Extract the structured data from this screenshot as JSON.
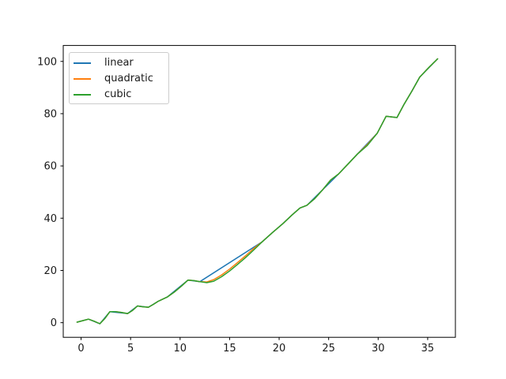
{
  "figure": {
    "background": "#ffffff",
    "axes_color": "#000000",
    "tick_label_color": "#1a1a1a"
  },
  "chart_data": {
    "type": "line",
    "title": "",
    "xlabel": "",
    "ylabel": "",
    "xlim": [
      -1.8,
      37.8
    ],
    "ylim": [
      -5.6,
      106.1
    ],
    "x_ticks": [
      0,
      5,
      10,
      15,
      20,
      25,
      30,
      35
    ],
    "y_ticks": [
      0,
      20,
      40,
      60,
      80,
      100
    ],
    "grid": false,
    "legend": {
      "position": "upper left",
      "border_color": "#cccccc",
      "background": "#ffffff"
    },
    "series": [
      {
        "name": "linear",
        "color": "#1f77b4",
        "line_width": 1.5,
        "points": [
          [
            -0.4,
            0.2
          ],
          [
            0.75,
            1.35
          ],
          [
            1.9,
            -0.4
          ],
          [
            2.9,
            4.2
          ],
          [
            4.7,
            3.5
          ],
          [
            5.7,
            6.4
          ],
          [
            6.8,
            5.9
          ],
          [
            7.8,
            8.2
          ],
          [
            8.7,
            9.8
          ],
          [
            10.8,
            16.3
          ],
          [
            12.0,
            15.7
          ],
          [
            18.3,
            31.0
          ],
          [
            19.3,
            34.4
          ],
          [
            20.4,
            38.0
          ],
          [
            21.3,
            41.2
          ],
          [
            22.1,
            43.9
          ],
          [
            22.8,
            44.9
          ],
          [
            24.4,
            50.9
          ],
          [
            26.0,
            56.9
          ],
          [
            27.9,
            64.5
          ],
          [
            29.9,
            72.5
          ],
          [
            30.8,
            79.0
          ],
          [
            31.9,
            78.5
          ],
          [
            32.6,
            83.5
          ],
          [
            33.4,
            88.6
          ],
          [
            34.2,
            94.0
          ],
          [
            36.0,
            101.0
          ]
        ]
      },
      {
        "name": "quadratic",
        "color": "#ff7f0e",
        "line_width": 1.5,
        "points": [
          [
            -0.4,
            0.2
          ],
          [
            0.2,
            0.8
          ],
          [
            0.75,
            1.35
          ],
          [
            1.3,
            0.6
          ],
          [
            1.9,
            -0.4
          ],
          [
            2.4,
            1.6
          ],
          [
            2.9,
            4.2
          ],
          [
            3.5,
            4.2
          ],
          [
            4.1,
            3.9
          ],
          [
            4.7,
            3.5
          ],
          [
            5.2,
            4.7
          ],
          [
            5.7,
            6.4
          ],
          [
            6.2,
            6.1
          ],
          [
            6.8,
            5.9
          ],
          [
            7.3,
            7.0
          ],
          [
            7.8,
            8.2
          ],
          [
            8.7,
            9.8
          ],
          [
            9.4,
            11.7
          ],
          [
            10.1,
            13.9
          ],
          [
            10.8,
            16.3
          ],
          [
            11.4,
            16.1
          ],
          [
            12.0,
            15.7
          ],
          [
            12.7,
            15.6
          ],
          [
            13.4,
            16.5
          ],
          [
            14.2,
            18.3
          ],
          [
            15.0,
            20.5
          ],
          [
            15.8,
            23.0
          ],
          [
            16.6,
            25.6
          ],
          [
            17.4,
            28.3
          ],
          [
            18.3,
            31.0
          ],
          [
            19.3,
            34.4
          ],
          [
            20.4,
            38.0
          ],
          [
            21.3,
            41.2
          ],
          [
            22.1,
            43.9
          ],
          [
            22.8,
            44.9
          ],
          [
            23.6,
            47.5
          ],
          [
            24.4,
            50.9
          ],
          [
            25.2,
            54.6
          ],
          [
            26.0,
            56.9
          ],
          [
            27.0,
            60.9
          ],
          [
            27.9,
            64.5
          ],
          [
            28.9,
            68.1
          ],
          [
            29.9,
            72.5
          ],
          [
            30.8,
            79.0
          ],
          [
            31.9,
            78.5
          ],
          [
            32.6,
            83.5
          ],
          [
            33.4,
            88.6
          ],
          [
            34.2,
            94.0
          ],
          [
            35.1,
            97.6
          ],
          [
            36.0,
            101.0
          ]
        ]
      },
      {
        "name": "cubic",
        "color": "#2ca02c",
        "line_width": 1.5,
        "points": [
          [
            -0.4,
            0.2
          ],
          [
            0.2,
            0.8
          ],
          [
            0.75,
            1.35
          ],
          [
            1.3,
            0.6
          ],
          [
            1.9,
            -0.4
          ],
          [
            2.4,
            1.6
          ],
          [
            2.9,
            4.2
          ],
          [
            3.5,
            4.2
          ],
          [
            4.1,
            3.9
          ],
          [
            4.7,
            3.5
          ],
          [
            5.2,
            4.7
          ],
          [
            5.7,
            6.4
          ],
          [
            6.2,
            6.1
          ],
          [
            6.8,
            5.9
          ],
          [
            7.3,
            7.0
          ],
          [
            7.8,
            8.2
          ],
          [
            8.7,
            9.8
          ],
          [
            9.4,
            11.7
          ],
          [
            10.1,
            13.9
          ],
          [
            10.8,
            16.3
          ],
          [
            11.4,
            16.1
          ],
          [
            12.0,
            15.7
          ],
          [
            12.7,
            15.3
          ],
          [
            13.4,
            15.9
          ],
          [
            14.2,
            17.6
          ],
          [
            15.0,
            19.8
          ],
          [
            15.8,
            22.3
          ],
          [
            16.6,
            24.9
          ],
          [
            17.4,
            27.7
          ],
          [
            18.3,
            31.0
          ],
          [
            19.3,
            34.4
          ],
          [
            20.4,
            38.0
          ],
          [
            21.3,
            41.2
          ],
          [
            22.1,
            43.9
          ],
          [
            22.8,
            44.9
          ],
          [
            23.6,
            47.5
          ],
          [
            24.4,
            50.9
          ],
          [
            25.2,
            54.6
          ],
          [
            26.0,
            56.9
          ],
          [
            27.0,
            60.9
          ],
          [
            27.9,
            64.5
          ],
          [
            28.9,
            67.8
          ],
          [
            29.9,
            72.5
          ],
          [
            30.8,
            79.0
          ],
          [
            31.9,
            78.5
          ],
          [
            32.6,
            83.5
          ],
          [
            33.4,
            88.6
          ],
          [
            34.2,
            94.0
          ],
          [
            35.1,
            97.6
          ],
          [
            36.0,
            101.0
          ]
        ]
      }
    ]
  }
}
